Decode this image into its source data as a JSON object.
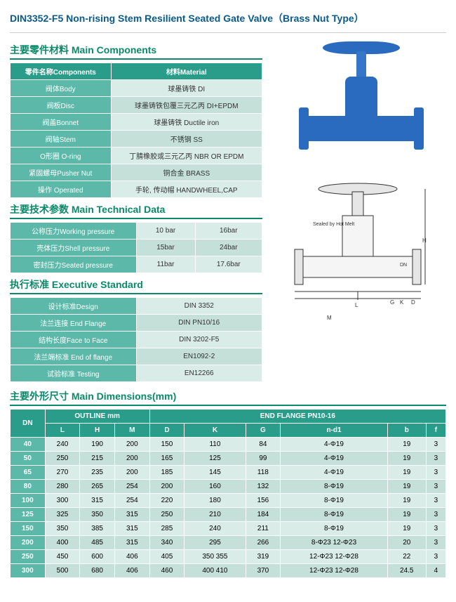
{
  "page": {
    "title": "DIN3352-F5 Non-rising Stem Resilient Seated Gate Valve（Brass Nut Type）"
  },
  "sections": {
    "components": {
      "heading_cn": "主要零件材料",
      "heading_en": "Main Components"
    },
    "technical": {
      "heading_cn": "主要技术参数",
      "heading_en": "Main Technical Data"
    },
    "executive": {
      "heading_cn": "执行标准",
      "heading_en": "Executive Standard"
    },
    "dimensions": {
      "heading_cn": "主要外形尺寸",
      "heading_en": "Main Dimensions(mm)"
    }
  },
  "components_table": {
    "head_left": "零件名称Components",
    "head_right": "材料Material",
    "rows": [
      {
        "label": "阀体Body",
        "value": "球墨铸铁 DI"
      },
      {
        "label": "阀板Disc",
        "value": "球墨铸铁包覆三元乙丙 DI+EPDM"
      },
      {
        "label": "阀盖Bonnet",
        "value": "球墨铸铁 Ductile iron"
      },
      {
        "label": "阀轴Stem",
        "value": "不锈钢 SS"
      },
      {
        "label": "O形圈 O-ring",
        "value": "丁腈橡胶或三元乙丙 NBR OR EPDM"
      },
      {
        "label": "紧固螺母Pusher Nut",
        "value": "铜合金 BRASS"
      },
      {
        "label": "操作 Operated",
        "value": "手轮, 传动帽 HANDWHEEL,CAP"
      }
    ]
  },
  "technical_table": {
    "rows": [
      {
        "label": "公称压力Working pressure",
        "v1": "10 bar",
        "v2": "16bar"
      },
      {
        "label": "壳体压力Shell pressure",
        "v1": "15bar",
        "v2": "24bar"
      },
      {
        "label": "密封压力Seated pressure",
        "v1": "11bar",
        "v2": "17.6bar"
      }
    ]
  },
  "executive_table": {
    "rows": [
      {
        "label": "设计标准Design",
        "value": "DIN 3352"
      },
      {
        "label": "法兰连接 End Flange",
        "value": "DIN PN10/16"
      },
      {
        "label": "结构长度Face to Face",
        "value": "DIN 3202-F5"
      },
      {
        "label": "法兰端标准 End of flange",
        "value": "EN1092-2"
      },
      {
        "label": "试验标准 Testing",
        "value": "EN12266"
      }
    ]
  },
  "dimensions_table": {
    "head_dn": "DN",
    "head_outline": "OUTLINE mm",
    "head_endflange": "END FLANGE PN10-16",
    "sub": [
      "L",
      "H",
      "M",
      "D",
      "K",
      "G",
      "n-d1",
      "b",
      "f"
    ],
    "rows": [
      [
        "40",
        "240",
        "190",
        "200",
        "150",
        "110",
        "84",
        "4-Φ19",
        "19",
        "3"
      ],
      [
        "50",
        "250",
        "215",
        "200",
        "165",
        "125",
        "99",
        "4-Φ19",
        "19",
        "3"
      ],
      [
        "65",
        "270",
        "235",
        "200",
        "185",
        "145",
        "118",
        "4-Φ19",
        "19",
        "3"
      ],
      [
        "80",
        "280",
        "265",
        "254",
        "200",
        "160",
        "132",
        "8-Φ19",
        "19",
        "3"
      ],
      [
        "100",
        "300",
        "315",
        "254",
        "220",
        "180",
        "156",
        "8-Φ19",
        "19",
        "3"
      ],
      [
        "125",
        "325",
        "350",
        "315",
        "250",
        "210",
        "184",
        "8-Φ19",
        "19",
        "3"
      ],
      [
        "150",
        "350",
        "385",
        "315",
        "285",
        "240",
        "211",
        "8-Φ19",
        "19",
        "3"
      ],
      [
        "200",
        "400",
        "485",
        "315",
        "340",
        "295",
        "266",
        "8-Φ23 12-Φ23",
        "20",
        "3"
      ],
      [
        "250",
        "450",
        "600",
        "406",
        "405",
        "350 355",
        "319",
        "12-Φ23 12-Φ28",
        "22",
        "3"
      ],
      [
        "300",
        "500",
        "680",
        "406",
        "460",
        "400 410",
        "370",
        "12-Φ23 12-Φ28",
        "24.5",
        "4"
      ]
    ]
  },
  "diagram": {
    "note": "Sealed by Hot Melt",
    "dims": [
      "H",
      "D",
      "DN",
      "K",
      "G",
      "L",
      "M"
    ]
  },
  "colors": {
    "head": "#2a9d8a",
    "label": "#5cb8a8",
    "val": "#d9ece7",
    "val2": "#c5e0d9",
    "title": "#0a5a8a",
    "valve": "#2a6bbf"
  }
}
